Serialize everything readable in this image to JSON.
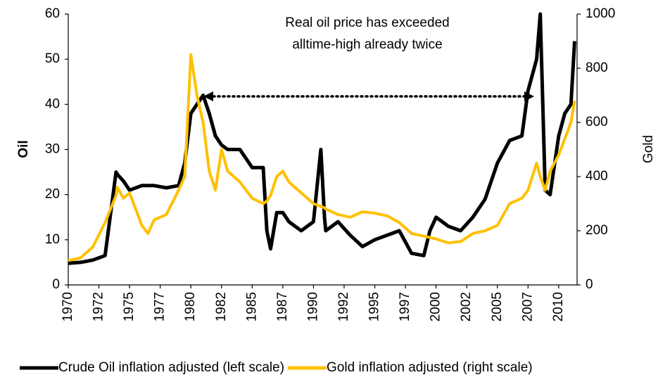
{
  "chart_data": {
    "type": "line",
    "annotation": [
      "Real oil price has exceeded",
      "alltime-high already twice"
    ],
    "ylabel": "Oil",
    "y2label": "Gold",
    "x": [
      1970,
      1971,
      1972,
      1973,
      1973.9,
      1974,
      1974.5,
      1975,
      1976,
      1976.5,
      1977,
      1978,
      1979,
      1979.5,
      1980,
      1980.5,
      1981,
      1981.5,
      1982,
      1982.5,
      1983,
      1984,
      1985,
      1985.9,
      1986.2,
      1986.5,
      1987,
      1987.5,
      1988,
      1989,
      1990,
      1990.6,
      1990.9,
      1991,
      1992,
      1993,
      1994,
      1995,
      1996,
      1997,
      1998,
      1999,
      1999.5,
      2000,
      2001,
      2002,
      2003,
      2004,
      2005,
      2006,
      2007,
      2007.5,
      2008.2,
      2008.5,
      2008.9,
      2009.3,
      2010,
      2010.5,
      2011,
      2011.3
    ],
    "series": [
      {
        "name": "Crude Oil inflation adjusted (left scale)",
        "color": "#000000",
        "axis": "y",
        "values": [
          4.8,
          5,
          5.5,
          6.5,
          25,
          24.5,
          23,
          21,
          22,
          22,
          22,
          21.5,
          22,
          27,
          38,
          40,
          42,
          38,
          33,
          31,
          30,
          30,
          26,
          26,
          12,
          8,
          16,
          16,
          14,
          12,
          14,
          30,
          15,
          12,
          14,
          11,
          8.5,
          10,
          11,
          12,
          7,
          6.5,
          12,
          15,
          13,
          12,
          15,
          19,
          27,
          32,
          33,
          43,
          50,
          60,
          21,
          20,
          33,
          38,
          40,
          54
        ]
      },
      {
        "name": "Gold inflation adjusted (right scale)",
        "color": "#ffc000",
        "axis": "y2",
        "values": [
          90,
          100,
          140,
          230,
          330,
          360,
          320,
          340,
          220,
          190,
          240,
          260,
          350,
          400,
          850,
          700,
          600,
          420,
          350,
          500,
          420,
          380,
          320,
          300,
          310,
          330,
          400,
          420,
          380,
          340,
          300,
          290,
          285,
          280,
          260,
          250,
          270,
          265,
          255,
          230,
          190,
          180,
          175,
          170,
          155,
          160,
          190,
          200,
          220,
          300,
          320,
          350,
          450,
          400,
          350,
          420,
          480,
          540,
          600,
          680
        ]
      }
    ],
    "xlim": [
      1970,
      2011.5
    ],
    "xticks": [
      1970,
      {
        "value": 1972.5,
        "label": "1972"
      },
      1975,
      {
        "value": 1977.5,
        "label": "1977"
      },
      1980,
      {
        "value": 1982.5,
        "label": "1982"
      },
      1985,
      {
        "value": 1987.5,
        "label": "1987"
      },
      1990,
      {
        "value": 1992.5,
        "label": "1992"
      },
      1995,
      {
        "value": 1997.5,
        "label": "1997"
      },
      2000,
      {
        "value": 2002.5,
        "label": "2002"
      },
      2005,
      {
        "value": 2007.5,
        "label": "2007"
      },
      2010
    ],
    "ylim": [
      0,
      60
    ],
    "yticks": [
      0,
      10,
      20,
      30,
      40,
      50,
      60
    ],
    "y2lim": [
      0,
      1000
    ],
    "y2ticks": [
      0,
      200,
      400,
      600,
      800,
      1000
    ],
    "legend": "bottom"
  }
}
